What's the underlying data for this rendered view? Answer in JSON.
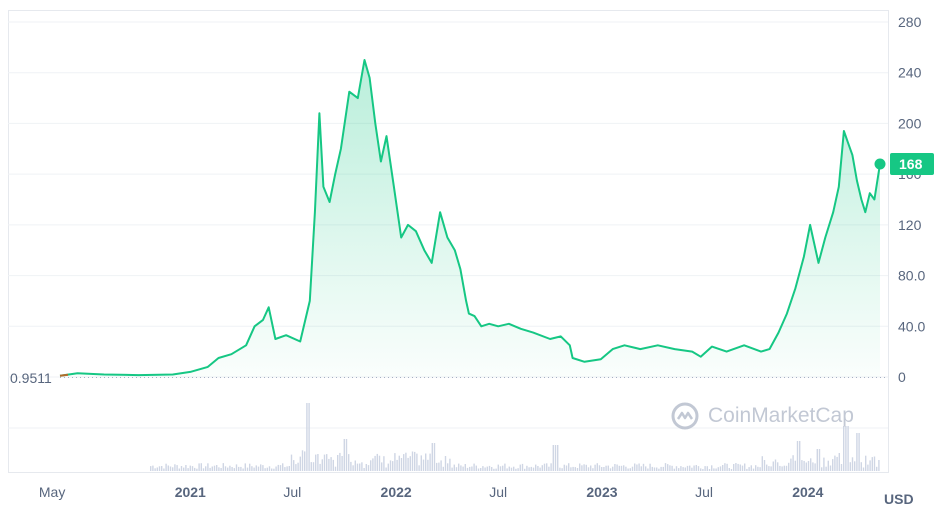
{
  "chart_data": {
    "type": "area",
    "currency": "USD",
    "watermark": "CoinMarketCap",
    "start_value_label": "0.9511",
    "current_value_label": "168",
    "ylim": [
      0,
      280
    ],
    "y_ticks": [
      "0",
      "40.0",
      "80.0",
      "120",
      "160",
      "200",
      "240",
      "280"
    ],
    "y_tick_values": [
      0,
      40,
      80,
      120,
      160,
      200,
      240,
      280
    ],
    "x_ticks": [
      {
        "label": "May",
        "date": "2020-05-01",
        "major": false
      },
      {
        "label": "2021",
        "date": "2021-01-01",
        "major": true
      },
      {
        "label": "Jul",
        "date": "2021-07-01",
        "major": false
      },
      {
        "label": "2022",
        "date": "2022-01-01",
        "major": true
      },
      {
        "label": "Jul",
        "date": "2022-07-01",
        "major": false
      },
      {
        "label": "2023",
        "date": "2023-01-01",
        "major": true
      },
      {
        "label": "Jul",
        "date": "2023-07-01",
        "major": false
      },
      {
        "label": "2024",
        "date": "2024-01-01",
        "major": true
      }
    ],
    "colors": {
      "line": "#16c784",
      "start": "#b36b2a",
      "axis_text": "#58667e",
      "volume": "#cfd6e4"
    },
    "x": [
      "2020-05-15",
      "2020-06-15",
      "2020-08-01",
      "2020-10-01",
      "2020-12-01",
      "2021-01-01",
      "2021-02-01",
      "2021-02-20",
      "2021-03-15",
      "2021-04-10",
      "2021-04-25",
      "2021-05-10",
      "2021-05-20",
      "2021-06-01",
      "2021-06-20",
      "2021-07-15",
      "2021-08-01",
      "2021-08-10",
      "2021-08-18",
      "2021-08-25",
      "2021-09-05",
      "2021-09-15",
      "2021-09-25",
      "2021-10-10",
      "2021-10-25",
      "2021-11-06",
      "2021-11-15",
      "2021-11-25",
      "2021-12-05",
      "2021-12-15",
      "2021-12-28",
      "2022-01-10",
      "2022-01-22",
      "2022-02-05",
      "2022-02-20",
      "2022-03-05",
      "2022-03-20",
      "2022-04-02",
      "2022-04-15",
      "2022-04-25",
      "2022-05-05",
      "2022-05-10",
      "2022-05-20",
      "2022-06-01",
      "2022-06-15",
      "2022-07-01",
      "2022-07-20",
      "2022-08-10",
      "2022-09-01",
      "2022-10-01",
      "2022-10-20",
      "2022-11-05",
      "2022-11-10",
      "2022-12-01",
      "2022-12-30",
      "2023-01-20",
      "2023-02-10",
      "2023-03-10",
      "2023-04-10",
      "2023-05-10",
      "2023-06-10",
      "2023-06-25",
      "2023-07-15",
      "2023-08-10",
      "2023-09-10",
      "2023-10-10",
      "2023-10-25",
      "2023-11-10",
      "2023-11-25",
      "2023-12-10",
      "2023-12-25",
      "2024-01-05",
      "2024-01-20",
      "2024-02-01",
      "2024-02-15",
      "2024-02-25",
      "2024-03-05",
      "2024-03-12",
      "2024-03-20",
      "2024-03-28",
      "2024-04-05",
      "2024-04-12",
      "2024-04-20",
      "2024-04-28",
      "2024-05-08"
    ],
    "values": [
      0.95,
      3,
      2,
      1.5,
      2,
      4,
      8,
      15,
      18,
      25,
      40,
      45,
      55,
      30,
      33,
      28,
      60,
      130,
      208,
      150,
      138,
      160,
      180,
      225,
      220,
      250,
      236,
      200,
      170,
      190,
      150,
      110,
      120,
      115,
      100,
      90,
      130,
      110,
      100,
      85,
      60,
      50,
      48,
      40,
      42,
      40,
      42,
      38,
      35,
      30,
      32,
      25,
      15,
      12,
      14,
      22,
      25,
      22,
      25,
      22,
      20,
      16,
      24,
      20,
      25,
      20,
      22,
      35,
      50,
      70,
      95,
      120,
      90,
      110,
      130,
      150,
      194,
      185,
      175,
      155,
      140,
      130,
      145,
      140,
      168
    ]
  }
}
